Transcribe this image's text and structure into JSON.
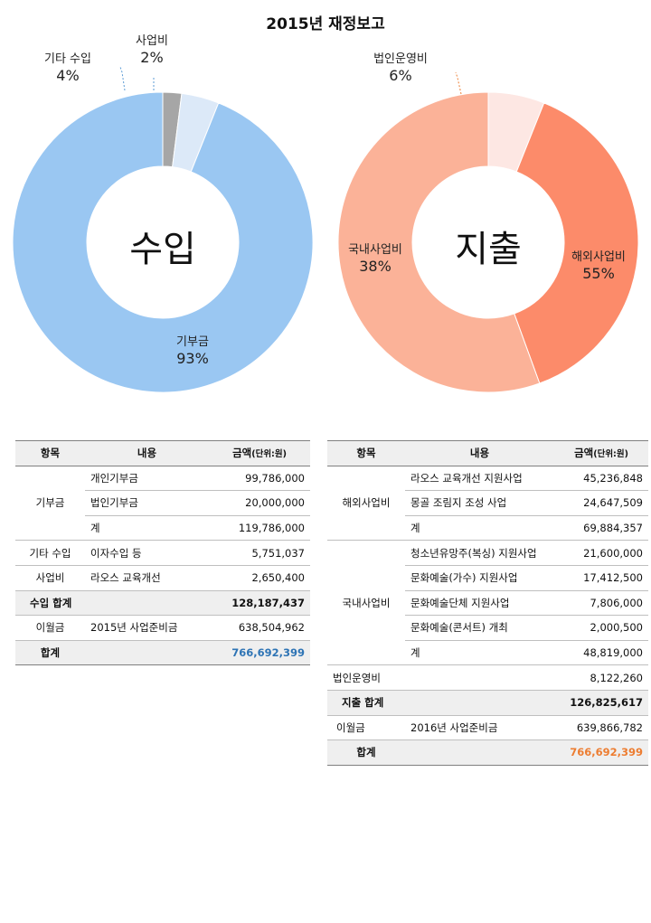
{
  "title": "2015년 재정보고",
  "chart_data": [
    {
      "type": "pie",
      "center_label": "수입",
      "slices": [
        {
          "label": "기부금",
          "value": 93,
          "pct_label": "93%",
          "color": "#9ac7f2"
        },
        {
          "label": "기타 수입",
          "value": 4,
          "pct_label": "4%",
          "color": "#dce9f8"
        },
        {
          "label": "사업비",
          "value": 2,
          "pct_label": "2%",
          "color": "#a6a6a6"
        }
      ]
    },
    {
      "type": "pie",
      "center_label": "지출",
      "slices": [
        {
          "label": "해외사업비",
          "value": 55,
          "pct_label": "55%",
          "color": "#fbb298"
        },
        {
          "label": "국내사업비",
          "value": 38,
          "pct_label": "38%",
          "color": "#fc8b6a"
        },
        {
          "label": "법인운영비",
          "value": 6,
          "pct_label": "6%",
          "color": "#fde7e3"
        }
      ]
    }
  ],
  "income_table": {
    "headers": {
      "item": "항목",
      "content": "내용",
      "amount": "금액",
      "unit": "(단위:원)"
    },
    "groups": [
      {
        "name": "기부금",
        "rows": [
          {
            "content": "개인기부금",
            "amount": "99,786,000"
          },
          {
            "content": "법인기부금",
            "amount": "20,000,000"
          },
          {
            "content": "계",
            "amount": "119,786,000"
          }
        ]
      },
      {
        "name": "기타 수입",
        "rows": [
          {
            "content": "이자수입 등",
            "amount": "5,751,037"
          }
        ]
      },
      {
        "name": "사업비",
        "rows": [
          {
            "content": "라오스 교육개선",
            "amount": "2,650,400"
          }
        ]
      }
    ],
    "subtotal": {
      "label": "수입 합계",
      "amount": "128,187,437"
    },
    "carry": {
      "label": "이월금",
      "content": "2015년 사업준비금",
      "amount": "638,504,962"
    },
    "total": {
      "label": "합계",
      "amount": "766,692,399",
      "color": "#2e74b5"
    }
  },
  "expense_table": {
    "headers": {
      "item": "항목",
      "content": "내용",
      "amount": "금액",
      "unit": "(단위:원)"
    },
    "groups": [
      {
        "name": "해외사업비",
        "rows": [
          {
            "content": "라오스 교육개선 지원사업",
            "amount": "45,236,848"
          },
          {
            "content": "몽골 조림지 조성 사업",
            "amount": "24,647,509"
          },
          {
            "content": "계",
            "amount": "69,884,357"
          }
        ]
      },
      {
        "name": "국내사업비",
        "rows": [
          {
            "content": "청소년유망주(복싱) 지원사업",
            "amount": "21,600,000"
          },
          {
            "content": "문화예술(가수) 지원사업",
            "amount": "17,412,500"
          },
          {
            "content": "문화예술단체 지원사업",
            "amount": "7,806,000"
          },
          {
            "content": "문화예술(콘서트) 개최",
            "amount": "2,000,500"
          },
          {
            "content": "계",
            "amount": "48,819,000"
          }
        ]
      },
      {
        "name": "법인운영비",
        "rows": [
          {
            "content": "",
            "amount": "8,122,260"
          }
        ]
      }
    ],
    "subtotal": {
      "label": "지출 합계",
      "amount": "126,825,617"
    },
    "carry": {
      "label": "이월금",
      "content": "2016년 사업준비금",
      "amount": "639,866,782"
    },
    "total": {
      "label": "합계",
      "amount": "766,692,399",
      "color": "#ed7d31"
    }
  }
}
